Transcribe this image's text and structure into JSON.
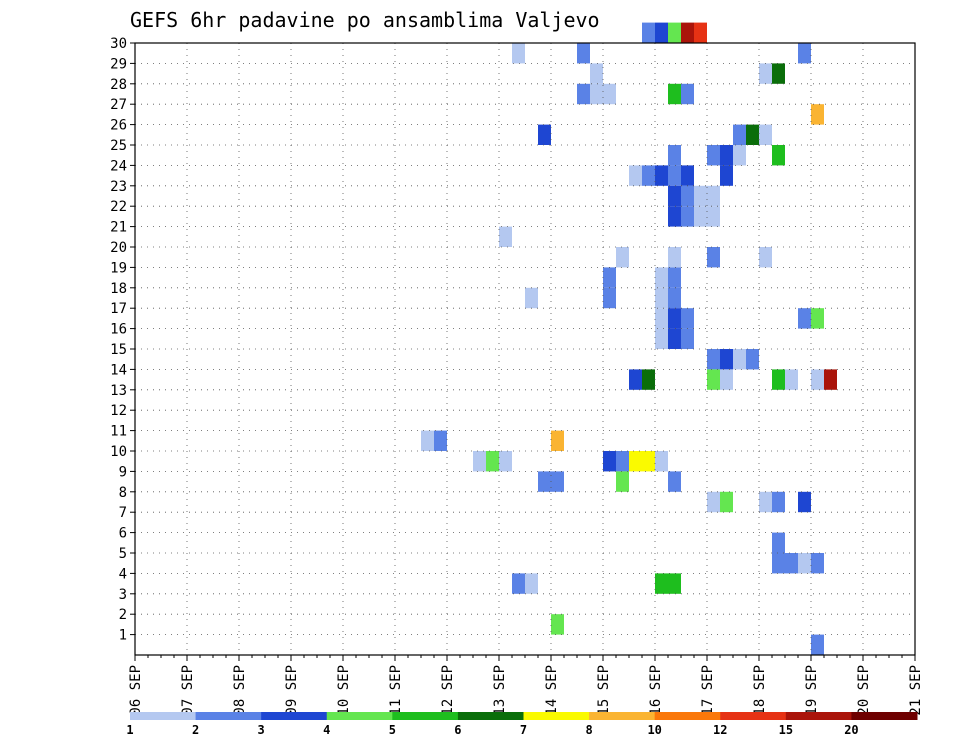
{
  "chart_data": {
    "type": "heatmap",
    "title": "GEFS 6hr padavine po ansamblima Valjevo",
    "xlabel": "",
    "ylabel": "",
    "x_ticks": [
      "06 SEP",
      "07 SEP",
      "08 SEP",
      "09 SEP",
      "10 SEP",
      "11 SEP",
      "12 SEP",
      "13 SEP",
      "14 SEP",
      "15 SEP",
      "16 SEP",
      "17 SEP",
      "18 SEP",
      "19 SEP",
      "20 SEP",
      "21 SEP"
    ],
    "y_ticks": [
      1,
      2,
      3,
      4,
      5,
      6,
      7,
      8,
      9,
      10,
      11,
      12,
      13,
      14,
      15,
      16,
      17,
      18,
      19,
      20,
      21,
      22,
      23,
      24,
      25,
      26,
      27,
      28,
      29,
      30
    ],
    "x_range": [
      "06 SEP 00z",
      "21 SEP 00z"
    ],
    "x_step_hours": 6,
    "y_range": [
      0,
      30
    ],
    "grid": true,
    "legend_placement": "bottom",
    "colorbar": {
      "labels": [
        "1",
        "2",
        "3",
        "4",
        "5",
        "6",
        "7",
        "8",
        "10",
        "12",
        "15",
        "20"
      ],
      "colors": [
        "#b4c8f0",
        "#5a82e6",
        "#1e46d2",
        "#64e650",
        "#1ebe1e",
        "#0a6e0a",
        "#fafa00",
        "#fab432",
        "#fa780a",
        "#e63214",
        "#aa140a",
        "#6e0000"
      ]
    },
    "cells": [
      {
        "step": 22,
        "member": 10,
        "value": 1.5
      },
      {
        "step": 23,
        "member": 10,
        "value": 2.5
      },
      {
        "step": 26,
        "member": 9,
        "value": 1.5
      },
      {
        "step": 27,
        "member": 9,
        "value": 4.5
      },
      {
        "step": 28,
        "member": 9,
        "value": 1.5
      },
      {
        "step": 32,
        "member": 10,
        "value": 9
      },
      {
        "step": 28,
        "member": 20,
        "value": 1.5
      },
      {
        "step": 29,
        "member": 29,
        "value": 1.5
      },
      {
        "step": 29,
        "member": 3,
        "value": 2.5
      },
      {
        "step": 30,
        "member": 3,
        "value": 1.5
      },
      {
        "step": 30,
        "member": 17,
        "value": 1.5
      },
      {
        "step": 31,
        "member": 25,
        "value": 3.5
      },
      {
        "step": 31,
        "member": 8,
        "value": 2.5
      },
      {
        "step": 32,
        "member": 8,
        "value": 2.5
      },
      {
        "step": 32,
        "member": 1,
        "value": 4.5
      },
      {
        "step": 34,
        "member": 29,
        "value": 2.5
      },
      {
        "step": 34,
        "member": 27,
        "value": 2.5
      },
      {
        "step": 35,
        "member": 28,
        "value": 1.5
      },
      {
        "step": 35,
        "member": 27,
        "value": 1.5
      },
      {
        "step": 36,
        "member": 27,
        "value": 1.5
      },
      {
        "step": 36,
        "member": 18,
        "value": 2.5
      },
      {
        "step": 36,
        "member": 17,
        "value": 2.5
      },
      {
        "step": 36,
        "member": 9,
        "value": 3.5
      },
      {
        "step": 37,
        "member": 9,
        "value": 2.5
      },
      {
        "step": 37,
        "member": 8,
        "value": 4.5
      },
      {
        "step": 37,
        "member": 19,
        "value": 1.5
      },
      {
        "step": 38,
        "member": 9,
        "value": 7.5
      },
      {
        "step": 39,
        "member": 9,
        "value": 7.5
      },
      {
        "step": 40,
        "member": 9,
        "value": 1.5
      },
      {
        "step": 39,
        "member": 30,
        "value": 2.5
      },
      {
        "step": 40,
        "member": 30,
        "value": 3.5
      },
      {
        "step": 41,
        "member": 30,
        "value": 4.5
      },
      {
        "step": 42,
        "member": 30,
        "value": 16
      },
      {
        "step": 43,
        "member": 30,
        "value": 13
      },
      {
        "step": 38,
        "member": 23,
        "value": 1.5
      },
      {
        "step": 39,
        "member": 23,
        "value": 2.5
      },
      {
        "step": 40,
        "member": 23,
        "value": 3.5
      },
      {
        "step": 41,
        "member": 23,
        "value": 2.5
      },
      {
        "step": 42,
        "member": 23,
        "value": 3.5
      },
      {
        "step": 41,
        "member": 22,
        "value": 3.5
      },
      {
        "step": 42,
        "member": 22,
        "value": 2.5
      },
      {
        "step": 43,
        "member": 22,
        "value": 1.5
      },
      {
        "step": 44,
        "member": 22,
        "value": 1.5
      },
      {
        "step": 41,
        "member": 21,
        "value": 3.5
      },
      {
        "step": 42,
        "member": 21,
        "value": 2.5
      },
      {
        "step": 43,
        "member": 21,
        "value": 1.5
      },
      {
        "step": 44,
        "member": 21,
        "value": 1.5
      },
      {
        "step": 41,
        "member": 27,
        "value": 5.5
      },
      {
        "step": 42,
        "member": 27,
        "value": 2.5
      },
      {
        "step": 41,
        "member": 24,
        "value": 2.5
      },
      {
        "step": 40,
        "member": 18,
        "value": 1.5
      },
      {
        "step": 41,
        "member": 18,
        "value": 2.5
      },
      {
        "step": 40,
        "member": 17,
        "value": 1.5
      },
      {
        "step": 41,
        "member": 17,
        "value": 2.5
      },
      {
        "step": 41,
        "member": 19,
        "value": 1.5
      },
      {
        "step": 40,
        "member": 16,
        "value": 1.5
      },
      {
        "step": 41,
        "member": 16,
        "value": 3.5
      },
      {
        "step": 42,
        "member": 16,
        "value": 2.5
      },
      {
        "step": 40,
        "member": 15,
        "value": 1.5
      },
      {
        "step": 41,
        "member": 15,
        "value": 3.5
      },
      {
        "step": 42,
        "member": 15,
        "value": 2.5
      },
      {
        "step": 38,
        "member": 13,
        "value": 3.5
      },
      {
        "step": 39,
        "member": 13,
        "value": 6.5
      },
      {
        "step": 41,
        "member": 8,
        "value": 2.5
      },
      {
        "step": 40,
        "member": 3,
        "value": 5.5
      },
      {
        "step": 41,
        "member": 3,
        "value": 5.5
      },
      {
        "step": 44,
        "member": 19,
        "value": 2.5
      },
      {
        "step": 44,
        "member": 14,
        "value": 2.5
      },
      {
        "step": 45,
        "member": 14,
        "value": 3.5
      },
      {
        "step": 46,
        "member": 14,
        "value": 1.5
      },
      {
        "step": 47,
        "member": 14,
        "value": 2.5
      },
      {
        "step": 44,
        "member": 13,
        "value": 4.5
      },
      {
        "step": 45,
        "member": 13,
        "value": 1.5
      },
      {
        "step": 44,
        "member": 7,
        "value": 1.5
      },
      {
        "step": 45,
        "member": 7,
        "value": 4.5
      },
      {
        "step": 44,
        "member": 24,
        "value": 2.5
      },
      {
        "step": 45,
        "member": 24,
        "value": 3.5
      },
      {
        "step": 46,
        "member": 24,
        "value": 1.5
      },
      {
        "step": 45,
        "member": 23,
        "value": 3.5
      },
      {
        "step": 46,
        "member": 25,
        "value": 2.5
      },
      {
        "step": 47,
        "member": 25,
        "value": 6.5
      },
      {
        "step": 48,
        "member": 25,
        "value": 1.5
      },
      {
        "step": 48,
        "member": 28,
        "value": 1.5
      },
      {
        "step": 49,
        "member": 28,
        "value": 6.5
      },
      {
        "step": 49,
        "member": 24,
        "value": 5.5
      },
      {
        "step": 48,
        "member": 19,
        "value": 1.5
      },
      {
        "step": 49,
        "member": 13,
        "value": 5.5
      },
      {
        "step": 50,
        "member": 13,
        "value": 1.5
      },
      {
        "step": 52,
        "member": 13,
        "value": 1.5
      },
      {
        "step": 53,
        "member": 13,
        "value": 16
      },
      {
        "step": 48,
        "member": 7,
        "value": 1.5
      },
      {
        "step": 49,
        "member": 7,
        "value": 2.5
      },
      {
        "step": 51,
        "member": 7,
        "value": 3.5
      },
      {
        "step": 49,
        "member": 5,
        "value": 2.5
      },
      {
        "step": 49,
        "member": 4,
        "value": 2.5
      },
      {
        "step": 50,
        "member": 4,
        "value": 2.5
      },
      {
        "step": 51,
        "member": 4,
        "value": 1.5
      },
      {
        "step": 52,
        "member": 4,
        "value": 2.5
      },
      {
        "step": 52,
        "member": 0,
        "value": 2.5
      },
      {
        "step": 51,
        "member": 29,
        "value": 2.5
      },
      {
        "step": 52,
        "member": 26,
        "value": 9
      },
      {
        "step": 51,
        "member": 16,
        "value": 2.5
      },
      {
        "step": 52,
        "member": 16,
        "value": 4.5
      }
    ]
  }
}
